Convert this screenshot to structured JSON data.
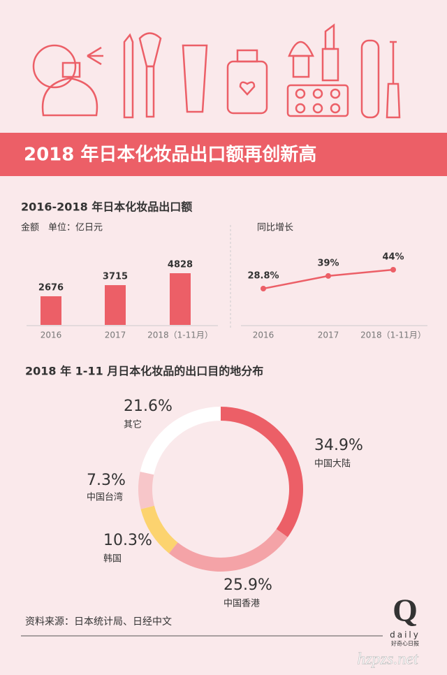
{
  "header": {
    "title": "2018 年日本化妆品出口额再创新高"
  },
  "chart_data": [
    {
      "type": "bar",
      "title": "2016-2018 年日本化妆品出口额",
      "subtitle": "金额　单位：亿日元",
      "categories": [
        "2016",
        "2017",
        "2018（1-11月）"
      ],
      "values": [
        2676,
        3715,
        4828
      ],
      "color": "#ec5f67"
    },
    {
      "type": "line",
      "subtitle": "同比增长",
      "categories": [
        "2016",
        "2017",
        "2018（1-11月）"
      ],
      "values": [
        28.8,
        39,
        44
      ],
      "value_labels": [
        "28.8%",
        "39%",
        "44%"
      ],
      "color": "#ec5f67"
    },
    {
      "type": "pie",
      "title": "2018 年 1-11 月日本化妆品的出口目的地分布",
      "categories": [
        "中国大陆",
        "中国香港",
        "韩国",
        "中国台湾",
        "其它"
      ],
      "values": [
        34.9,
        25.9,
        10.3,
        7.3,
        21.6
      ],
      "value_labels": [
        "34.9%",
        "25.9%",
        "10.3%",
        "7.3%",
        "21.6%"
      ],
      "colors": [
        "#ec5f67",
        "#f4a3a7",
        "#fcd36f",
        "#f7c6c9",
        "#ffffff"
      ]
    }
  ],
  "source": "资料来源：日本统计局、日经中文",
  "logo": {
    "letter": "Q",
    "name": "daily",
    "tagline": "好奇心日报"
  },
  "watermark": "hzpzs.net"
}
